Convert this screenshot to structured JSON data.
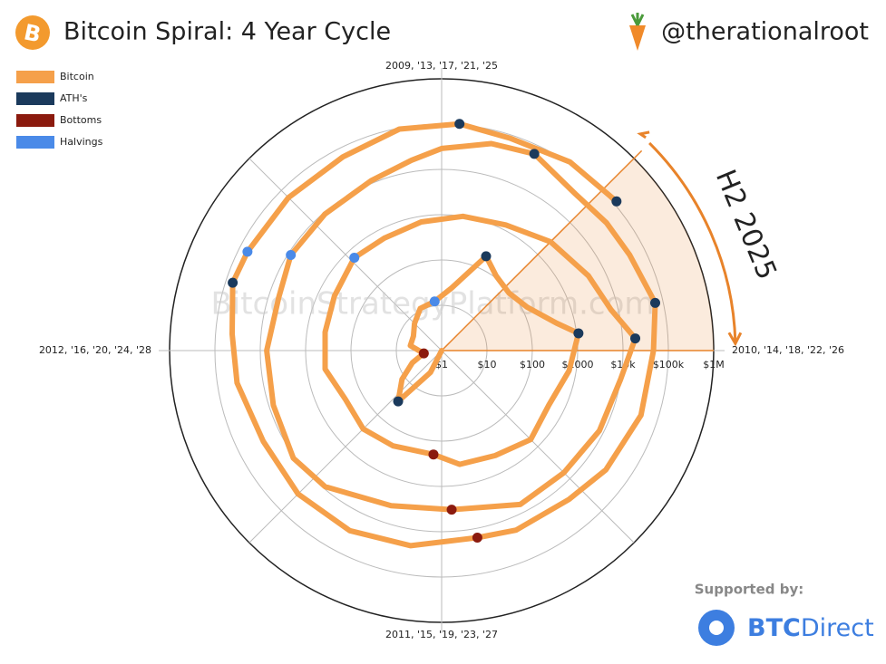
{
  "chart_data": {
    "type": "polar",
    "title": "Bitcoin Spiral: 4 Year Cycle",
    "author": "@therationalroot",
    "watermark": "BitcoinStrategyPlatform.com",
    "sponsor_label": "Supported by:",
    "sponsor_bold": "BTC",
    "sponsor_rest": "Direct",
    "log_scale": true,
    "rlim": [
      1,
      1000000
    ],
    "rticks": [
      {
        "value": 1,
        "label": "$1"
      },
      {
        "value": 10,
        "label": "$10"
      },
      {
        "value": 100,
        "label": "$100"
      },
      {
        "value": 1000,
        "label": "$1000"
      },
      {
        "value": 10000,
        "label": "$10k"
      },
      {
        "value": 100000,
        "label": "$100k"
      },
      {
        "value": 1000000,
        "label": "$1M"
      }
    ],
    "xticks": [
      {
        "value": 2009,
        "label": "2009, '13, '17, '21, '25"
      },
      {
        "value": 2010,
        "label": "2010, '14, '18, '22, '26"
      },
      {
        "value": 2011,
        "label": "2011, '15, '19, '23, '27"
      },
      {
        "value": 2012,
        "label": "2012, '16, '20, '24, '28"
      }
    ],
    "highlight": {
      "label": "H2 2025",
      "x": [
        2025.5,
        2026
      ],
      "color": "#e8832a"
    },
    "series": [
      {
        "name": "Bitcoin",
        "color": "#f5a04a",
        "mode": "line",
        "x": [
          2011.1,
          2011.3,
          2011.45,
          2011.6,
          2011.75,
          2011.9,
          2012.1,
          2012.3,
          2012.5,
          2012.7,
          2012.91,
          2013.1,
          2013.28,
          2013.4,
          2013.55,
          2013.7,
          2013.85,
          2013.92,
          2014.1,
          2014.3,
          2014.5,
          2014.7,
          2014.9,
          2015.05,
          2015.3,
          2015.5,
          2015.7,
          2015.9,
          2016.1,
          2016.3,
          2016.52,
          2016.7,
          2016.9,
          2017.1,
          2017.3,
          2017.5,
          2017.7,
          2017.85,
          2017.96,
          2018.1,
          2018.3,
          2018.5,
          2018.7,
          2018.96,
          2019.2,
          2019.45,
          2019.6,
          2019.8,
          2020.0,
          2020.2,
          2020.36,
          2020.55,
          2020.75,
          2020.9,
          2021.0,
          2021.15,
          2021.28,
          2021.45,
          2021.58,
          2021.7,
          2021.86,
          2022.0,
          2022.2,
          2022.4,
          2022.55,
          2022.75,
          2022.88,
          2023.1,
          2023.3,
          2023.5,
          2023.7,
          2023.9,
          2024.05,
          2024.2,
          2024.3,
          2024.5,
          2024.7,
          2024.88,
          2025.05,
          2025.2,
          2025.38,
          2025.55
        ],
        "values": [
          1,
          3.5,
          30,
          12,
          5,
          2.5,
          5,
          5,
          7,
          11,
          12.5,
          25,
          200,
          110,
          90,
          130,
          400,
          1100,
          700,
          450,
          600,
          400,
          350,
          200,
          230,
          280,
          240,
          400,
          400,
          450,
          650,
          610,
          750,
          1000,
          1300,
          2500,
          4300,
          7000,
          19000,
          10000,
          8000,
          6500,
          6500,
          3300,
          4000,
          9000,
          11000,
          8000,
          7200,
          6000,
          8700,
          9200,
          11500,
          18000,
          29000,
          50000,
          63000,
          35000,
          40000,
          45000,
          67000,
          47000,
          42000,
          30000,
          21000,
          19500,
          16000,
          23000,
          29000,
          30000,
          26000,
          37000,
          43000,
          70000,
          64000,
          60000,
          63000,
          95000,
          105000,
          84000,
          108000,
          118000
        ]
      },
      {
        "name": "ATH's",
        "color": "#1b3a5c",
        "mode": "marker",
        "x": [
          2011.45,
          2013.28,
          2013.92,
          2017.96,
          2021.28,
          2021.86,
          2024.2,
          2025.05,
          2025.55
        ],
        "values": [
          30,
          200,
          1100,
          19000,
          63000,
          67000,
          70000,
          105000,
          118000
        ]
      },
      {
        "name": "Bottoms",
        "color": "#8b1a0e",
        "mode": "marker",
        "x": [
          2011.9,
          2015.05,
          2018.96,
          2022.88
        ],
        "values": [
          2.5,
          200,
          3300,
          16000
        ]
      },
      {
        "name": "Halvings",
        "color": "#4a8ae8",
        "mode": "marker",
        "x": [
          2012.91,
          2016.52,
          2020.36,
          2024.3
        ],
        "values": [
          12.5,
          650,
          8700,
          64000
        ]
      }
    ]
  }
}
